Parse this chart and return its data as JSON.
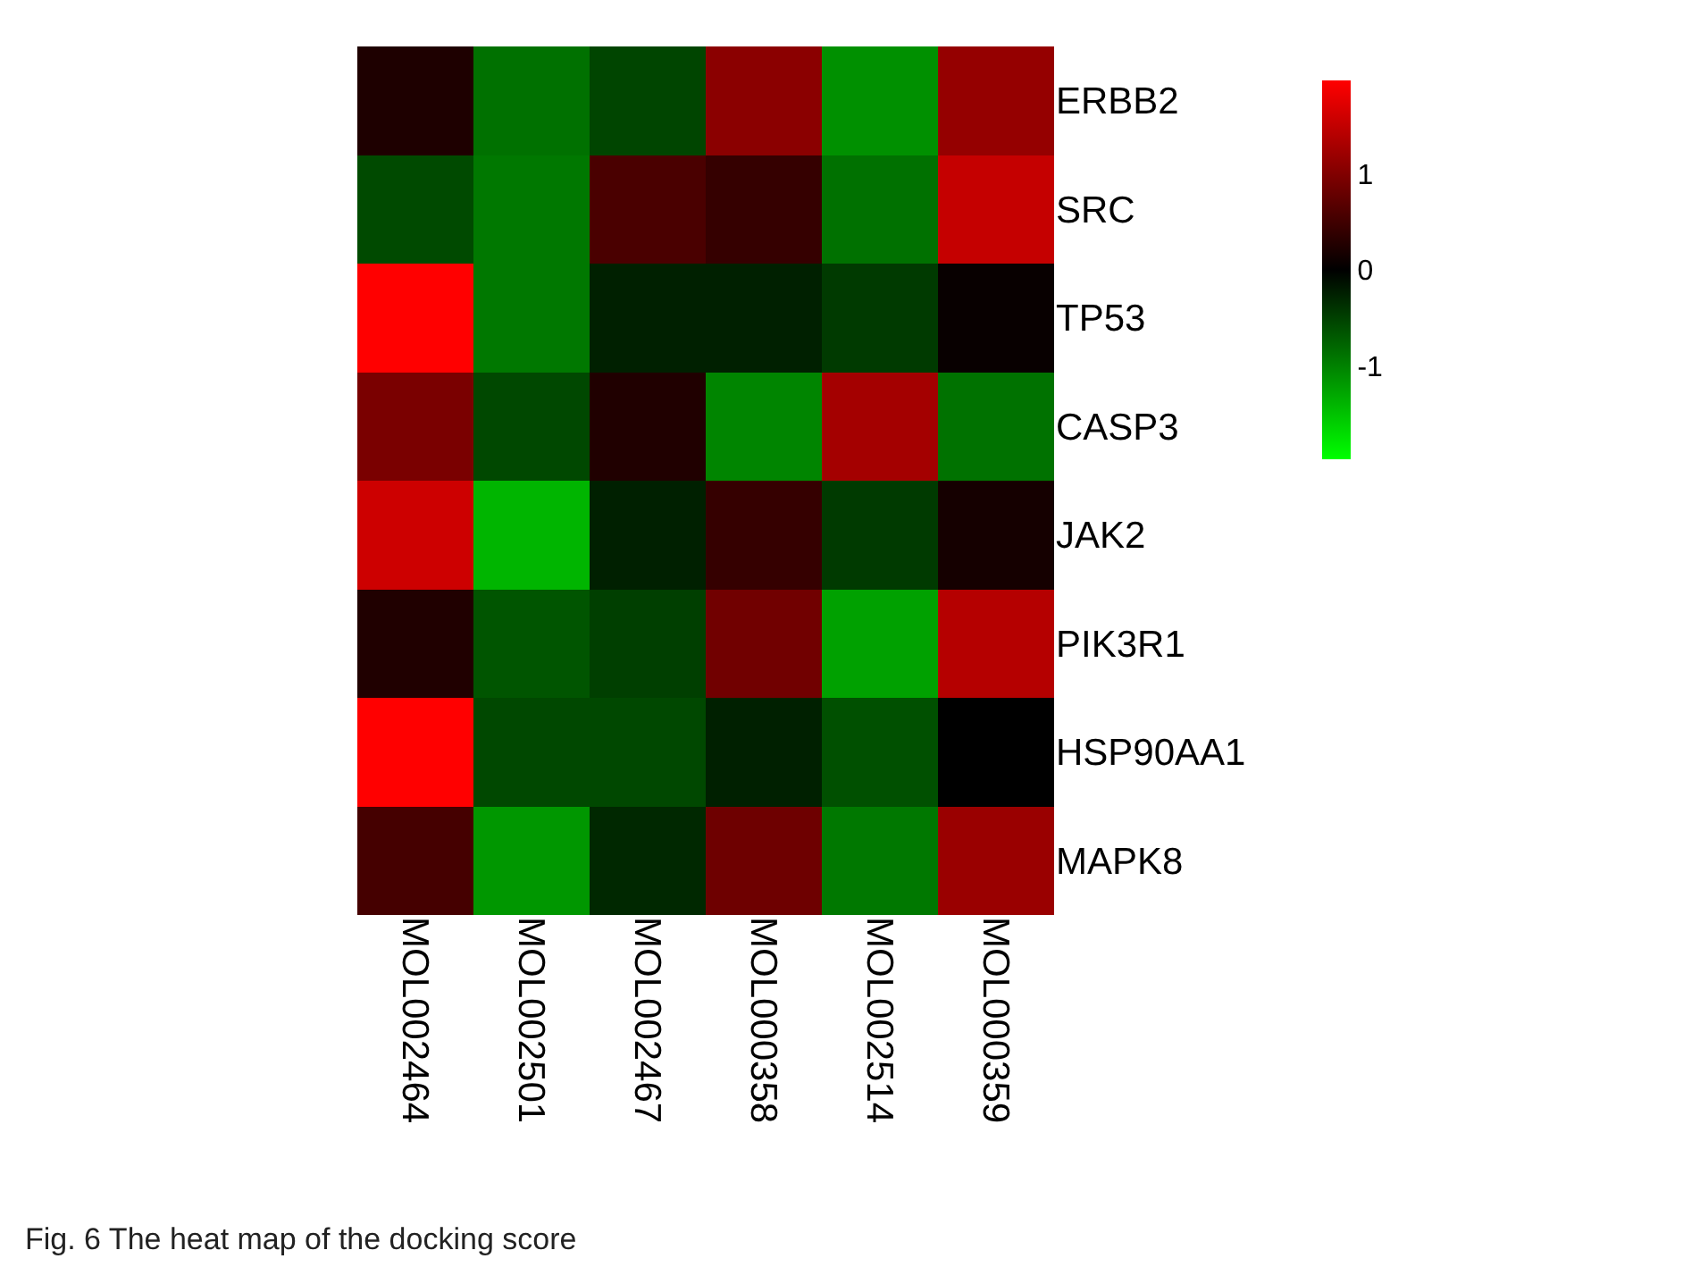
{
  "chart_data": {
    "type": "heatmap",
    "categories": [
      "MOL002464",
      "MOL002501",
      "MOL002467",
      "MOL000358",
      "MOL002514",
      "MOL000359"
    ],
    "y_categories": [
      "ERBB2",
      "SRC",
      "TP53",
      "CASP3",
      "JAK2",
      "PIK3R1",
      "HSP90AA1",
      "MAPK8"
    ],
    "cells": [
      [
        0.23,
        -0.87,
        -0.53,
        1.07,
        -1.11,
        1.15
      ],
      [
        -0.57,
        -0.93,
        0.57,
        0.41,
        -0.87,
        1.52
      ],
      [
        1.97,
        -0.93,
        -0.25,
        -0.25,
        -0.45,
        0.06
      ],
      [
        0.94,
        -0.56,
        0.25,
        -1.03,
        1.27,
        -0.88
      ],
      [
        1.58,
        -1.4,
        -0.25,
        0.41,
        -0.45,
        0.16
      ],
      [
        0.25,
        -0.66,
        -0.49,
        0.87,
        -1.24,
        1.4
      ],
      [
        1.97,
        -0.56,
        -0.56,
        -0.25,
        -0.62,
        0.0
      ],
      [
        0.53,
        -1.17,
        -0.31,
        0.85,
        -0.93,
        1.19
      ]
    ],
    "clim": [
      -1.97,
      1.97
    ],
    "cticks": [
      -1,
      0,
      1
    ],
    "annotations": [
      "Fig. 6 The heat map of the docking score"
    ]
  }
}
